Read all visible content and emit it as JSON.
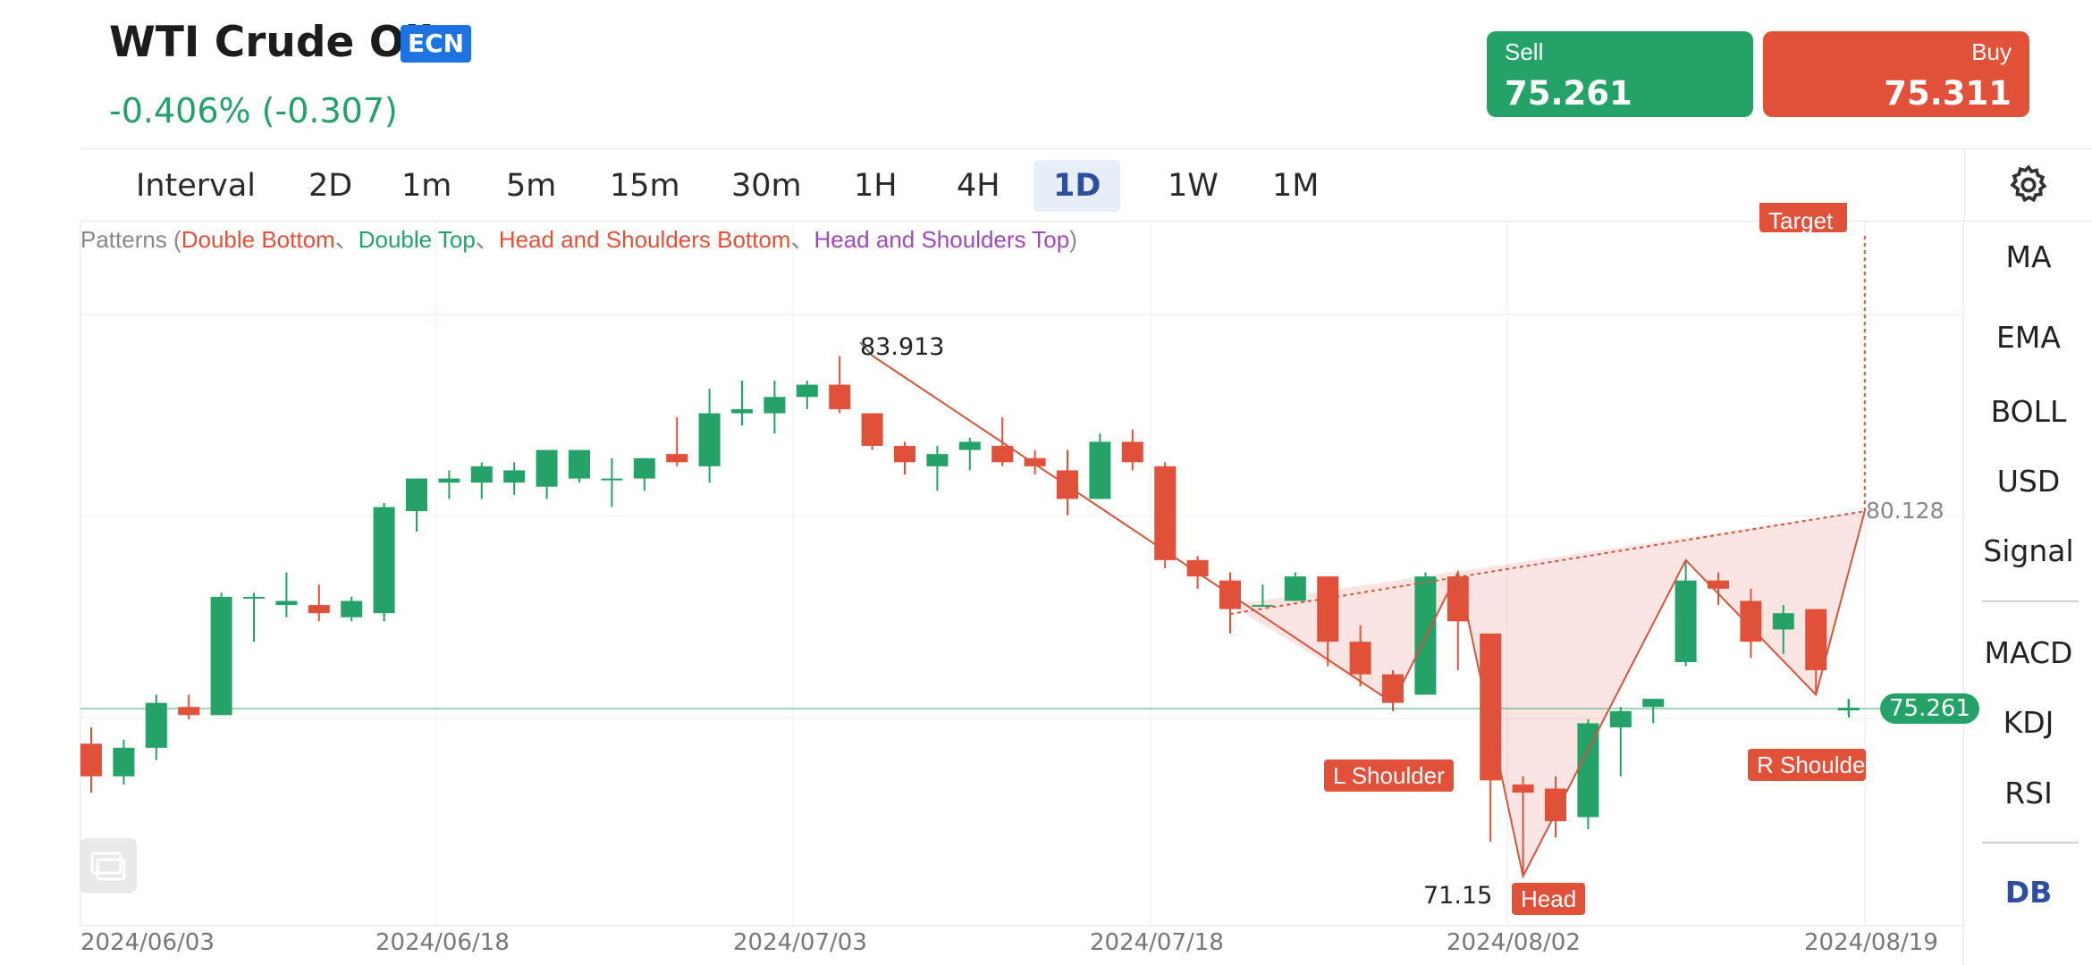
{
  "header": {
    "title": "WTI Crude Oil",
    "badge": "ECN",
    "change": "-0.406% (-0.307)",
    "sell_label": "Sell",
    "sell_price": "75.261",
    "buy_label": "Buy",
    "buy_price": "75.311"
  },
  "intervals": [
    "Interval",
    "2D",
    "1m",
    "5m",
    "15m",
    "30m",
    "1H",
    "4H",
    "1D",
    "1W",
    "1M"
  ],
  "active_interval": "1D",
  "side_panel": [
    "MA",
    "EMA",
    "BOLL",
    "USD",
    "Signal",
    "MACD",
    "KDJ",
    "RSI",
    "DB"
  ],
  "patterns_prefix": "Patterns (",
  "patterns": [
    "Double Bottom",
    "Double Top",
    "Head and Shoulders Bottom",
    "Head and Shoulders Top"
  ],
  "patterns_sep": "、",
  "patterns_suffix": ")",
  "labels": {
    "high": "83.913",
    "low": "71.15",
    "neckline": "80.128",
    "current": "75.261",
    "l_shoulder": "L Shoulder",
    "head": "Head",
    "r_shoulder": "R Shoulder",
    "target": "Target"
  },
  "colors": {
    "up": "#24a267",
    "down": "#e1513a",
    "accent": "#2c4fa0"
  },
  "chart_data": {
    "type": "candlestick",
    "x_labels": [
      "2024/06/03",
      "2024/06/18",
      "2024/07/03",
      "2024/07/18",
      "2024/08/02",
      "2024/08/19"
    ],
    "pattern": "Head and Shoulders Bottom",
    "candles": [
      {
        "o": 74.4,
        "h": 74.8,
        "l": 73.2,
        "c": 73.6
      },
      {
        "o": 73.6,
        "h": 74.5,
        "l": 73.4,
        "c": 74.3
      },
      {
        "o": 74.3,
        "h": 75.6,
        "l": 74.0,
        "c": 75.4
      },
      {
        "o": 75.3,
        "h": 75.6,
        "l": 75.0,
        "c": 75.1
      },
      {
        "o": 75.1,
        "h": 78.1,
        "l": 75.1,
        "c": 78.0
      },
      {
        "o": 78.0,
        "h": 78.1,
        "l": 76.9,
        "c": 78.0
      },
      {
        "o": 77.8,
        "h": 78.6,
        "l": 77.5,
        "c": 77.9
      },
      {
        "o": 77.8,
        "h": 78.3,
        "l": 77.4,
        "c": 77.6
      },
      {
        "o": 77.5,
        "h": 78.0,
        "l": 77.4,
        "c": 77.9
      },
      {
        "o": 77.6,
        "h": 80.3,
        "l": 77.4,
        "c": 80.2
      },
      {
        "o": 80.1,
        "h": 80.9,
        "l": 79.6,
        "c": 80.9
      },
      {
        "o": 80.8,
        "h": 81.1,
        "l": 80.4,
        "c": 80.9
      },
      {
        "o": 80.8,
        "h": 81.3,
        "l": 80.4,
        "c": 81.2
      },
      {
        "o": 80.8,
        "h": 81.3,
        "l": 80.5,
        "c": 81.1
      },
      {
        "o": 80.7,
        "h": 81.6,
        "l": 80.4,
        "c": 81.6
      },
      {
        "o": 80.9,
        "h": 81.6,
        "l": 80.8,
        "c": 81.6
      },
      {
        "o": 80.9,
        "h": 81.4,
        "l": 80.2,
        "c": 80.9
      },
      {
        "o": 80.9,
        "h": 81.4,
        "l": 80.6,
        "c": 81.4
      },
      {
        "o": 81.5,
        "h": 82.4,
        "l": 81.2,
        "c": 81.3
      },
      {
        "o": 81.2,
        "h": 83.1,
        "l": 80.8,
        "c": 82.5
      },
      {
        "o": 82.5,
        "h": 83.3,
        "l": 82.2,
        "c": 82.6
      },
      {
        "o": 82.5,
        "h": 83.3,
        "l": 82.0,
        "c": 82.9
      },
      {
        "o": 82.9,
        "h": 83.3,
        "l": 82.6,
        "c": 83.2
      },
      {
        "o": 83.2,
        "h": 83.9,
        "l": 82.5,
        "c": 82.6
      },
      {
        "o": 82.5,
        "h": 82.5,
        "l": 81.6,
        "c": 81.7
      },
      {
        "o": 81.7,
        "h": 81.8,
        "l": 81.0,
        "c": 81.3
      },
      {
        "o": 81.2,
        "h": 81.7,
        "l": 80.6,
        "c": 81.5
      },
      {
        "o": 81.6,
        "h": 81.9,
        "l": 81.1,
        "c": 81.8
      },
      {
        "o": 81.7,
        "h": 82.4,
        "l": 81.2,
        "c": 81.3
      },
      {
        "o": 81.4,
        "h": 81.6,
        "l": 81.0,
        "c": 81.2
      },
      {
        "o": 81.1,
        "h": 81.6,
        "l": 80.0,
        "c": 80.4
      },
      {
        "o": 80.4,
        "h": 82.0,
        "l": 80.4,
        "c": 81.8
      },
      {
        "o": 81.8,
        "h": 82.1,
        "l": 81.1,
        "c": 81.3
      },
      {
        "o": 81.2,
        "h": 81.3,
        "l": 78.7,
        "c": 78.9
      },
      {
        "o": 78.9,
        "h": 79.0,
        "l": 78.2,
        "c": 78.5
      },
      {
        "o": 78.4,
        "h": 78.6,
        "l": 77.1,
        "c": 77.7
      },
      {
        "o": 77.8,
        "h": 78.3,
        "l": 77.8,
        "c": 77.8
      },
      {
        "o": 77.9,
        "h": 78.6,
        "l": 77.9,
        "c": 78.5
      },
      {
        "o": 78.5,
        "h": 78.5,
        "l": 76.3,
        "c": 76.9
      },
      {
        "o": 76.9,
        "h": 77.3,
        "l": 75.8,
        "c": 76.1
      },
      {
        "o": 76.1,
        "h": 76.2,
        "l": 75.2,
        "c": 75.4
      },
      {
        "o": 75.6,
        "h": 78.6,
        "l": 75.6,
        "c": 78.5
      },
      {
        "o": 78.5,
        "h": 78.6,
        "l": 76.2,
        "c": 77.4
      },
      {
        "o": 77.1,
        "h": 77.1,
        "l": 72.0,
        "c": 73.5
      },
      {
        "o": 73.4,
        "h": 73.6,
        "l": 71.2,
        "c": 73.2
      },
      {
        "o": 73.3,
        "h": 73.6,
        "l": 72.1,
        "c": 72.5
      },
      {
        "o": 72.6,
        "h": 75.0,
        "l": 72.3,
        "c": 74.9
      },
      {
        "o": 74.8,
        "h": 75.3,
        "l": 73.6,
        "c": 75.2
      },
      {
        "o": 75.3,
        "h": 75.5,
        "l": 74.9,
        "c": 75.5
      },
      {
        "o": 76.4,
        "h": 78.9,
        "l": 76.3,
        "c": 78.4
      },
      {
        "o": 78.4,
        "h": 78.6,
        "l": 77.8,
        "c": 78.2
      },
      {
        "o": 77.9,
        "h": 78.2,
        "l": 76.5,
        "c": 76.9
      },
      {
        "o": 77.2,
        "h": 77.8,
        "l": 76.6,
        "c": 77.6
      },
      {
        "o": 77.7,
        "h": 77.7,
        "l": 75.6,
        "c": 76.2
      },
      {
        "o": 75.26,
        "h": 75.5,
        "l": 75.1,
        "c": 75.261
      }
    ],
    "ylim": [
      70.5,
      85.5
    ],
    "grid": true
  }
}
